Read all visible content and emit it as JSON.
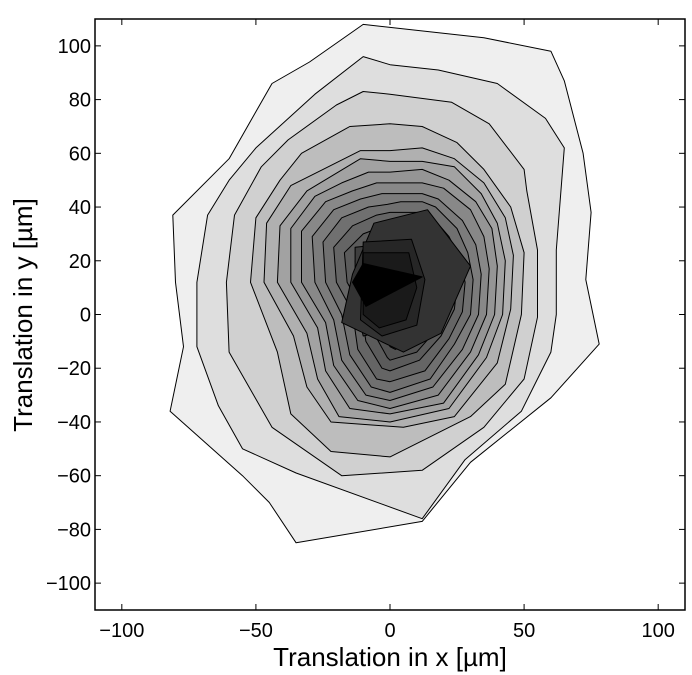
{
  "chart_data": {
    "type": "contour",
    "title": "",
    "xlabel": "Translation in x [µm]",
    "ylabel": "Translation in y [µm]",
    "xlim": [
      -110,
      110
    ],
    "ylim": [
      -110,
      110
    ],
    "xticks": [
      -100,
      -50,
      0,
      50,
      100
    ],
    "yticks": [
      -100,
      -80,
      -60,
      -40,
      -20,
      0,
      20,
      40,
      60,
      80,
      100
    ],
    "xtick_labels": [
      "−100",
      "−50",
      "0",
      "50",
      "100"
    ],
    "ytick_labels": [
      "−100",
      "−80",
      "−60",
      "−40",
      "−20",
      "0",
      "20",
      "40",
      "60",
      "80",
      "100"
    ],
    "grid": false,
    "legend": "none",
    "fill_colors": [
      "#efefef",
      "#dedede",
      "#d0d0d0",
      "#bdbdbd",
      "#b0b0b0",
      "#a2a2a2",
      "#959595",
      "#888888",
      "#7c7c7c",
      "#707070",
      "#656565",
      "#5b5b5b",
      "#515151",
      "#484848",
      "#3f3f3f",
      "#333333",
      "#262626",
      "#1a1a1a",
      "#000000"
    ],
    "line_color": "#000000",
    "contours": [
      [
        [
          -10,
          108
        ],
        [
          35,
          103
        ],
        [
          60,
          98
        ],
        [
          65,
          87
        ],
        [
          72,
          60
        ],
        [
          75,
          38
        ],
        [
          73,
          13
        ],
        [
          78,
          -11
        ],
        [
          60,
          -31
        ],
        [
          30,
          -55
        ],
        [
          12,
          -77
        ],
        [
          -35,
          -85
        ],
        [
          -45,
          -70
        ],
        [
          -55,
          -60
        ],
        [
          -82,
          -36
        ],
        [
          -77,
          -12
        ],
        [
          -80,
          12
        ],
        [
          -81,
          37
        ],
        [
          -60,
          58
        ],
        [
          -44,
          86
        ],
        [
          -30,
          94
        ]
      ],
      [
        [
          -10,
          96
        ],
        [
          0,
          93
        ],
        [
          18,
          91
        ],
        [
          40,
          86
        ],
        [
          58,
          73
        ],
        [
          65,
          62
        ],
        [
          62,
          24
        ],
        [
          62,
          0
        ],
        [
          60,
          -14
        ],
        [
          49,
          -36
        ],
        [
          28,
          -54
        ],
        [
          12,
          -76
        ],
        [
          -35,
          -59
        ],
        [
          -55,
          -50
        ],
        [
          -64,
          -34
        ],
        [
          -72,
          -12
        ],
        [
          -72,
          12
        ],
        [
          -68,
          37
        ],
        [
          -60,
          50
        ],
        [
          -50,
          62
        ],
        [
          -28,
          82
        ]
      ],
      [
        [
          -10,
          83
        ],
        [
          0,
          82
        ],
        [
          23,
          79
        ],
        [
          37,
          71
        ],
        [
          50,
          54
        ],
        [
          51,
          46
        ],
        [
          55,
          24
        ],
        [
          55,
          -1
        ],
        [
          50,
          -24
        ],
        [
          35,
          -42
        ],
        [
          12,
          -58
        ],
        [
          -18,
          -60
        ],
        [
          -44,
          -42
        ],
        [
          -60,
          -14
        ],
        [
          -61,
          12
        ],
        [
          -58,
          37
        ],
        [
          -48,
          55
        ],
        [
          -38,
          65
        ],
        [
          -20,
          78
        ]
      ],
      [
        [
          -15,
          70
        ],
        [
          0,
          71
        ],
        [
          12,
          70
        ],
        [
          25,
          64
        ],
        [
          35,
          54
        ],
        [
          45,
          40
        ],
        [
          50,
          23
        ],
        [
          49,
          0
        ],
        [
          43,
          -26
        ],
        [
          30,
          -38
        ],
        [
          0,
          -53
        ],
        [
          -22,
          -51
        ],
        [
          -37,
          -37
        ],
        [
          -42,
          -14
        ],
        [
          -52,
          12
        ],
        [
          -50,
          36
        ],
        [
          -41,
          50
        ],
        [
          -33,
          60
        ]
      ],
      [
        [
          -11,
          61
        ],
        [
          0,
          61
        ],
        [
          12,
          62
        ],
        [
          24,
          58
        ],
        [
          35,
          49
        ],
        [
          43,
          36
        ],
        [
          46,
          22
        ],
        [
          45,
          2
        ],
        [
          40,
          -18
        ],
        [
          24,
          -38
        ],
        [
          5,
          -42
        ],
        [
          -22,
          -40
        ],
        [
          -31,
          -27
        ],
        [
          -36,
          -8
        ],
        [
          -47,
          12
        ],
        [
          -46,
          34
        ],
        [
          -37,
          48
        ],
        [
          -25,
          54
        ]
      ],
      [
        [
          -11,
          58
        ],
        [
          0,
          57
        ],
        [
          12,
          57
        ],
        [
          24,
          55
        ],
        [
          34,
          45
        ],
        [
          40,
          34
        ],
        [
          43,
          20
        ],
        [
          42,
          0
        ],
        [
          36,
          -16
        ],
        [
          22,
          -35
        ],
        [
          0,
          -40
        ],
        [
          -19,
          -38
        ],
        [
          -27,
          -24
        ],
        [
          -31,
          -7
        ],
        [
          -42,
          12
        ],
        [
          -41,
          33
        ],
        [
          -31,
          46
        ],
        [
          -21,
          52
        ]
      ],
      [
        [
          -8,
          53
        ],
        [
          0,
          53
        ],
        [
          12,
          54
        ],
        [
          22,
          50
        ],
        [
          32,
          42
        ],
        [
          38,
          32
        ],
        [
          40,
          18
        ],
        [
          39,
          0
        ],
        [
          33,
          -15
        ],
        [
          20,
          -33
        ],
        [
          0,
          -37
        ],
        [
          -15,
          -35
        ],
        [
          -24,
          -21
        ],
        [
          -27,
          -5
        ],
        [
          -37,
          12
        ],
        [
          -37,
          32
        ],
        [
          -28,
          44
        ],
        [
          -18,
          49
        ]
      ],
      [
        [
          -5,
          49
        ],
        [
          2,
          49
        ],
        [
          12,
          49
        ],
        [
          20,
          47
        ],
        [
          30,
          39
        ],
        [
          35,
          29
        ],
        [
          37,
          17
        ],
        [
          36,
          0
        ],
        [
          30,
          -14
        ],
        [
          18,
          -30
        ],
        [
          0,
          -35
        ],
        [
          -12,
          -32
        ],
        [
          -21,
          -19
        ],
        [
          -24,
          -3
        ],
        [
          -33,
          12
        ],
        [
          -33,
          31
        ],
        [
          -24,
          42
        ],
        [
          -14,
          46
        ]
      ],
      [
        [
          -3,
          45
        ],
        [
          3,
          45
        ],
        [
          12,
          45
        ],
        [
          18,
          43
        ],
        [
          27,
          35
        ],
        [
          32,
          26
        ],
        [
          34,
          15
        ],
        [
          33,
          0
        ],
        [
          27,
          -13
        ],
        [
          16,
          -27
        ],
        [
          0,
          -32
        ],
        [
          -9,
          -30
        ],
        [
          -18,
          -17
        ],
        [
          -21,
          -2
        ],
        [
          -28,
          12
        ],
        [
          -29,
          29
        ],
        [
          -21,
          39
        ],
        [
          -11,
          43
        ]
      ],
      [
        [
          -1,
          41
        ],
        [
          4,
          42
        ],
        [
          12,
          42
        ],
        [
          17,
          40
        ],
        [
          25,
          32
        ],
        [
          29,
          23
        ],
        [
          31,
          13
        ],
        [
          30,
          0
        ],
        [
          24,
          -11
        ],
        [
          15,
          -24
        ],
        [
          0,
          -29
        ],
        [
          -7,
          -27
        ],
        [
          -15,
          -15
        ],
        [
          -18,
          0
        ],
        [
          -24,
          12
        ],
        [
          -25,
          27
        ],
        [
          -18,
          36
        ],
        [
          -8,
          40
        ]
      ],
      [
        [
          0,
          38
        ],
        [
          6,
          38
        ],
        [
          12,
          38
        ],
        [
          16,
          36
        ],
        [
          22,
          29
        ],
        [
          26,
          21
        ],
        [
          28,
          12
        ],
        [
          27,
          1
        ],
        [
          22,
          -9
        ],
        [
          13,
          -21
        ],
        [
          0,
          -25
        ],
        [
          -5,
          -24
        ],
        [
          -12,
          -13
        ],
        [
          -14,
          1
        ],
        [
          -20,
          12
        ],
        [
          -21,
          25
        ],
        [
          -14,
          33
        ],
        [
          -5,
          37
        ]
      ],
      [
        [
          2,
          34
        ],
        [
          8,
          35
        ],
        [
          12,
          35
        ],
        [
          15,
          32
        ],
        [
          21,
          25
        ],
        [
          24,
          18
        ],
        [
          25,
          11
        ],
        [
          24,
          2
        ],
        [
          19,
          -8
        ],
        [
          11,
          -17
        ],
        [
          0,
          -21
        ],
        [
          -3,
          -20
        ],
        [
          -9,
          -10
        ],
        [
          -11,
          3
        ],
        [
          -16,
          12
        ],
        [
          -17,
          23
        ],
        [
          -10,
          30
        ],
        [
          -2,
          33
        ]
      ],
      [
        [
          3,
          30
        ],
        [
          9,
          30
        ],
        [
          12,
          30
        ],
        [
          14,
          28
        ],
        [
          19,
          22
        ],
        [
          22,
          16
        ],
        [
          22,
          10
        ],
        [
          21,
          3
        ],
        [
          17,
          -6
        ],
        [
          10,
          -14
        ],
        [
          0,
          -17
        ],
        [
          -1,
          -16
        ],
        [
          -6,
          -7
        ],
        [
          -8,
          5
        ],
        [
          -12,
          12
        ],
        [
          -13,
          20
        ],
        [
          -6,
          26
        ],
        [
          0,
          29
        ]
      ],
      [
        [
          4,
          26
        ],
        [
          10,
          26
        ],
        [
          12,
          26
        ],
        [
          14,
          24
        ],
        [
          18,
          19
        ],
        [
          20,
          14
        ],
        [
          20,
          9
        ],
        [
          19,
          3
        ],
        [
          15,
          -5
        ],
        [
          9,
          -10
        ],
        [
          2,
          -13
        ],
        [
          0,
          -12
        ],
        [
          -3,
          -4
        ],
        [
          -5,
          6
        ],
        [
          -9,
          12
        ],
        [
          -9,
          18
        ],
        [
          -3,
          23
        ],
        [
          1,
          25
        ]
      ],
      [
        [
          -13,
          25
        ],
        [
          6,
          27
        ],
        [
          12,
          21
        ],
        [
          18,
          9
        ],
        [
          12,
          -3
        ],
        [
          -10,
          -8
        ],
        [
          -13,
          5
        ]
      ],
      [
        [
          -6,
          34
        ],
        [
          14,
          39
        ],
        [
          30,
          18
        ],
        [
          19,
          -7
        ],
        [
          5,
          -14
        ],
        [
          -18,
          -3
        ],
        [
          -14,
          15
        ]
      ],
      [
        [
          -10,
          27
        ],
        [
          8,
          28
        ],
        [
          13,
          13
        ],
        [
          10,
          -4
        ],
        [
          -3,
          -8
        ],
        [
          -11,
          -2
        ]
      ],
      [
        [
          -10,
          23
        ],
        [
          7,
          23
        ],
        [
          10,
          10
        ],
        [
          6,
          -2
        ],
        [
          -4,
          -5
        ],
        [
          -10,
          0
        ]
      ],
      [
        [
          -10,
          19
        ],
        [
          12,
          14
        ],
        [
          -9,
          3
        ],
        [
          -14,
          12
        ]
      ]
    ]
  }
}
